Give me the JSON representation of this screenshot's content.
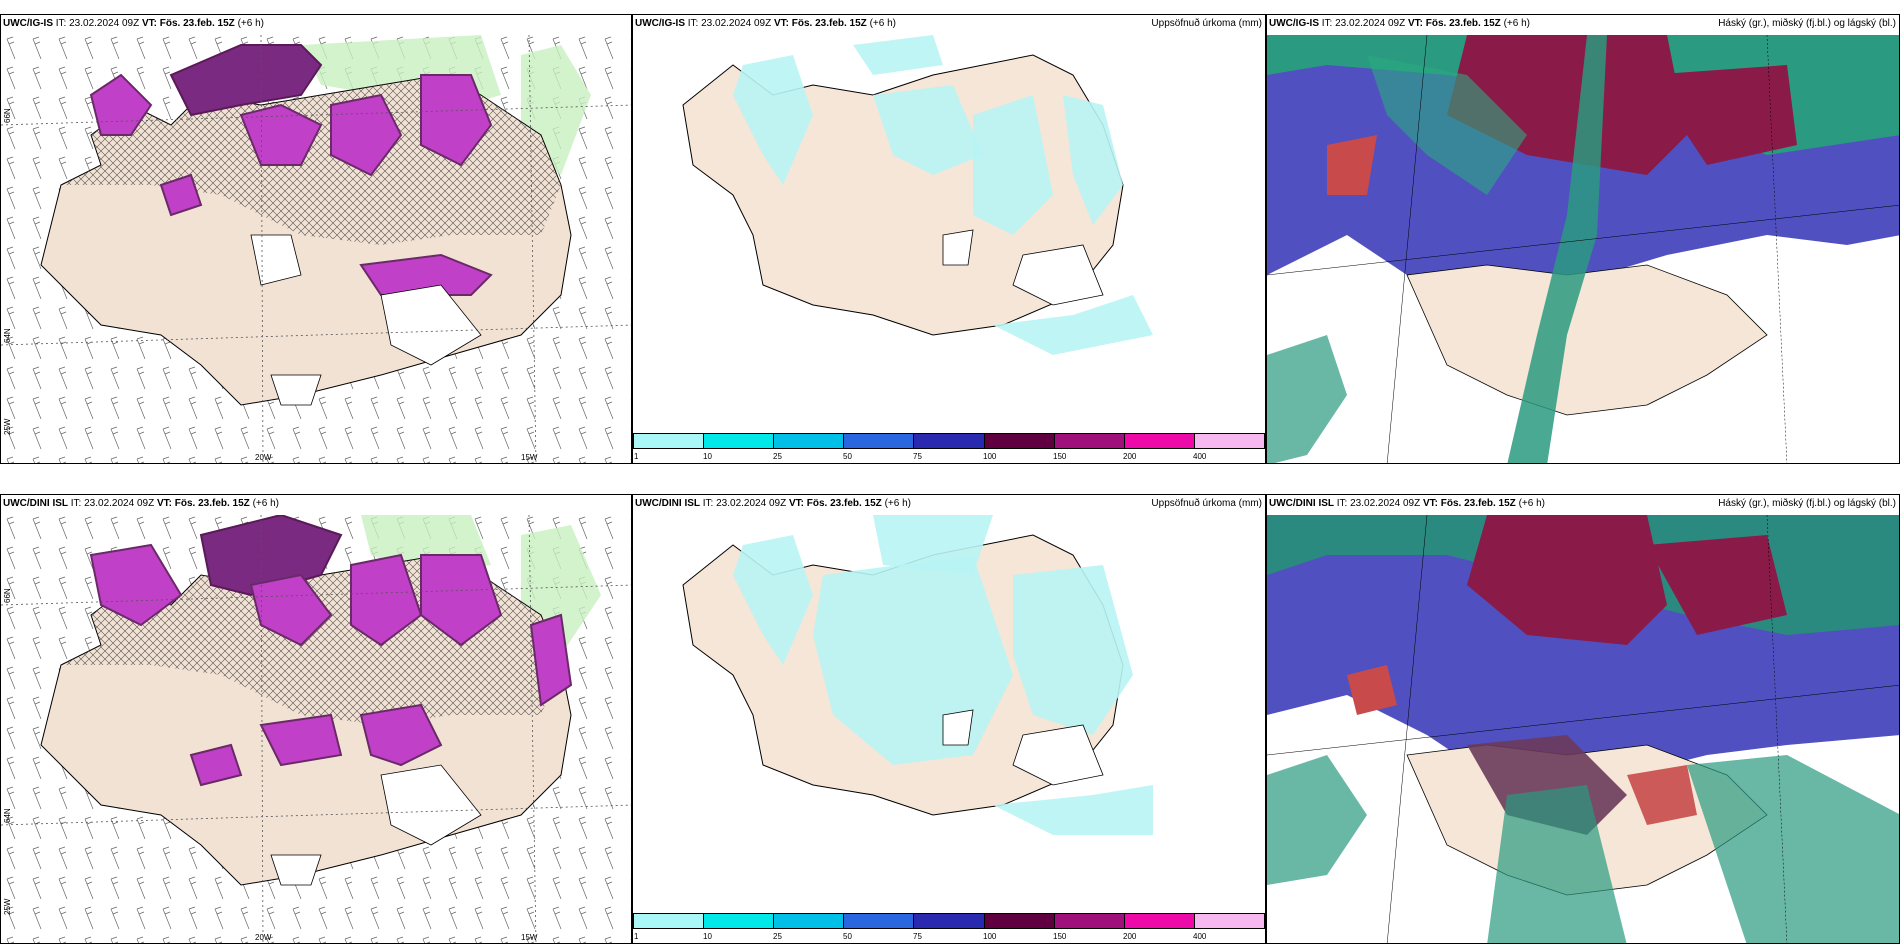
{
  "rows": [
    {
      "model_title": "UWC/IG-IS",
      "it_label": "IT:",
      "it_value": "23.02.2024 09Z",
      "vt_label": "VT:",
      "vt_value": "Fös. 23.feb. 15Z",
      "lead": "(+6 h)"
    },
    {
      "model_title": "UWC/DINI ISL",
      "it_label": "IT:",
      "it_value": "23.02.2024 09Z",
      "vt_label": "VT:",
      "vt_value": "Fös. 23.feb. 15Z",
      "lead": "(+6 h)"
    }
  ],
  "precip_title": "Uppsöfnuð úrkoma (mm)",
  "cloud_title": "Háský (gr.), miðský (fj.bl.) og lágský (bl.)",
  "axis_labels": {
    "lat66": "66N",
    "lat64": "64N",
    "lon25": "25W",
    "lon20": "20W",
    "lon15": "15W",
    "lat65": "65N",
    "lat64b": "64N"
  },
  "precip_scale": {
    "ticks": [
      "1",
      "10",
      "25",
      "50",
      "75",
      "100",
      "150",
      "200",
      "400"
    ],
    "colors": [
      "#aaf7f7",
      "#00e8e8",
      "#00c0e8",
      "#2a66e0",
      "#2a2ab0",
      "#600040",
      "#a0107a",
      "#ee0aa8",
      "#f7b8f0"
    ]
  },
  "colors": {
    "land": "#f6e6d8",
    "precip_light": "#b8f4f4",
    "snow_purple": "#c040c8",
    "snow_dark": "#6a2a68",
    "green_light": "#c8f0c0",
    "cloud_high": "#8a1a48",
    "cloud_mid": "#4040b0",
    "cloud_low": "#2a9a80"
  }
}
